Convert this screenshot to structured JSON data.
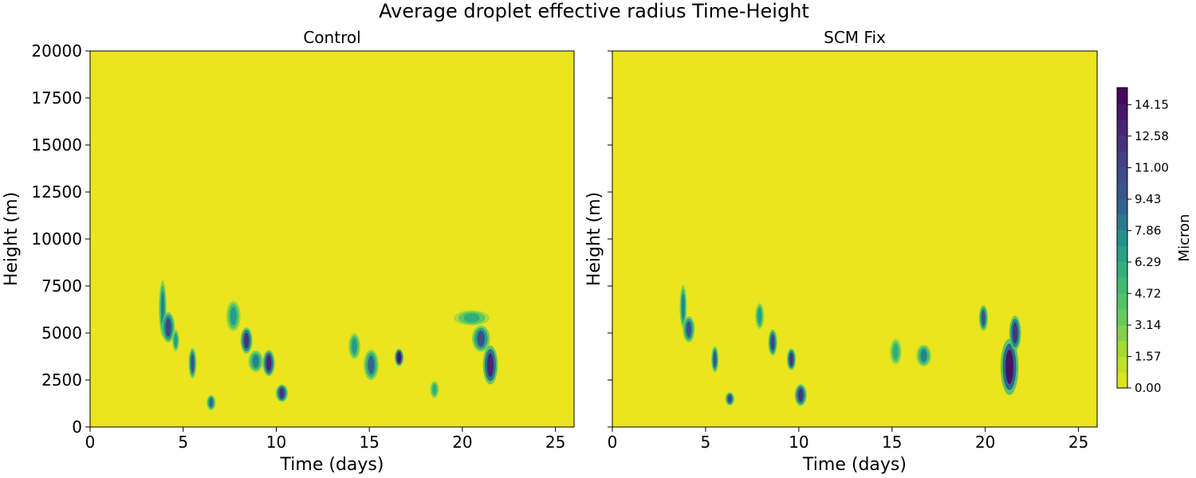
{
  "chart_data": {
    "type": "heatmap",
    "suptitle": "Average droplet effective radius Time-Height",
    "panels": [
      {
        "title": "Control",
        "xlabel": "Time (days)",
        "ylabel": "Height (m)",
        "xlim": [
          0,
          26
        ],
        "ylim": [
          0,
          20000
        ],
        "xticks": [
          "0",
          "5",
          "10",
          "15",
          "20",
          "25"
        ],
        "yticks": [
          "0",
          "2500",
          "5000",
          "7500",
          "10000",
          "12500",
          "15000",
          "17500",
          "20000"
        ],
        "features": [
          {
            "t": 3.9,
            "h": 6300,
            "dt": 0.13,
            "dh": 1300,
            "v": 8
          },
          {
            "t": 4.2,
            "h": 5300,
            "dt": 0.22,
            "dh": 700,
            "v": 11
          },
          {
            "t": 4.6,
            "h": 4600,
            "dt": 0.12,
            "dh": 500,
            "v": 7
          },
          {
            "t": 5.5,
            "h": 3400,
            "dt": 0.13,
            "dh": 700,
            "v": 10
          },
          {
            "t": 6.5,
            "h": 1300,
            "dt": 0.15,
            "dh": 350,
            "v": 9
          },
          {
            "t": 7.7,
            "h": 5900,
            "dt": 0.24,
            "dh": 700,
            "v": 7
          },
          {
            "t": 8.4,
            "h": 4600,
            "dt": 0.2,
            "dh": 600,
            "v": 12
          },
          {
            "t": 8.9,
            "h": 3500,
            "dt": 0.25,
            "dh": 500,
            "v": 8
          },
          {
            "t": 9.6,
            "h": 3400,
            "dt": 0.2,
            "dh": 600,
            "v": 13
          },
          {
            "t": 10.3,
            "h": 1800,
            "dt": 0.2,
            "dh": 400,
            "v": 12
          },
          {
            "t": 14.2,
            "h": 4300,
            "dt": 0.2,
            "dh": 600,
            "v": 7
          },
          {
            "t": 15.1,
            "h": 3300,
            "dt": 0.25,
            "dh": 700,
            "v": 9
          },
          {
            "t": 16.6,
            "h": 3700,
            "dt": 0.15,
            "dh": 400,
            "v": 14
          },
          {
            "t": 18.5,
            "h": 2000,
            "dt": 0.15,
            "dh": 400,
            "v": 6
          },
          {
            "t": 20.5,
            "h": 5800,
            "dt": 0.6,
            "dh": 350,
            "v": 6
          },
          {
            "t": 21.5,
            "h": 3300,
            "dt": 0.25,
            "dh": 900,
            "v": 13
          },
          {
            "t": 21.0,
            "h": 4700,
            "dt": 0.3,
            "dh": 600,
            "v": 10
          }
        ]
      },
      {
        "title": "SCM Fix",
        "xlabel": "Time (days)",
        "ylabel": "Height (m)",
        "xlim": [
          0,
          26
        ],
        "ylim": [
          0,
          20000
        ],
        "xticks": [
          "0",
          "5",
          "10",
          "15",
          "20",
          "25"
        ],
        "yticks": [],
        "features": [
          {
            "t": 3.8,
            "h": 6400,
            "dt": 0.12,
            "dh": 1000,
            "v": 8
          },
          {
            "t": 4.1,
            "h": 5200,
            "dt": 0.2,
            "dh": 600,
            "v": 10
          },
          {
            "t": 5.5,
            "h": 3600,
            "dt": 0.12,
            "dh": 600,
            "v": 10
          },
          {
            "t": 6.3,
            "h": 1500,
            "dt": 0.15,
            "dh": 300,
            "v": 11
          },
          {
            "t": 7.9,
            "h": 5900,
            "dt": 0.15,
            "dh": 600,
            "v": 7
          },
          {
            "t": 8.6,
            "h": 4500,
            "dt": 0.15,
            "dh": 600,
            "v": 11
          },
          {
            "t": 9.6,
            "h": 3600,
            "dt": 0.15,
            "dh": 500,
            "v": 12
          },
          {
            "t": 10.1,
            "h": 1700,
            "dt": 0.2,
            "dh": 500,
            "v": 12
          },
          {
            "t": 15.2,
            "h": 4000,
            "dt": 0.2,
            "dh": 600,
            "v": 6
          },
          {
            "t": 16.7,
            "h": 3800,
            "dt": 0.25,
            "dh": 500,
            "v": 8
          },
          {
            "t": 19.9,
            "h": 5800,
            "dt": 0.15,
            "dh": 600,
            "v": 10
          },
          {
            "t": 21.3,
            "h": 3200,
            "dt": 0.3,
            "dh": 1300,
            "v": 14
          },
          {
            "t": 21.6,
            "h": 5000,
            "dt": 0.2,
            "dh": 800,
            "v": 12
          }
        ]
      }
    ],
    "colorbar": {
      "label": "Micron",
      "vmin": 0.0,
      "vmax": 15.0,
      "ticks": [
        "0.00",
        "1.57",
        "3.14",
        "4.72",
        "6.29",
        "7.86",
        "9.43",
        "11.00",
        "12.58",
        "14.15"
      ],
      "colormap": "viridis"
    }
  }
}
